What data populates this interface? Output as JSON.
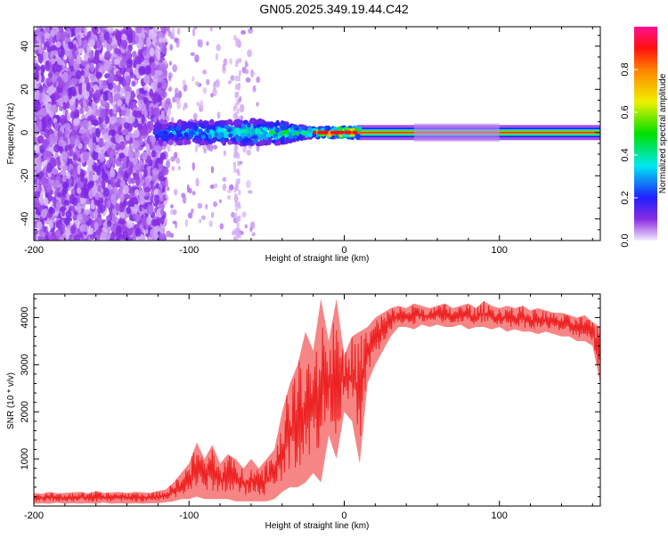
{
  "title": "GN05.2025.349.19.44.C42",
  "chart_data": [
    {
      "type": "heatmap",
      "title": "GN05.2025.349.19.44.C42",
      "xlabel": "Height of straight line (km)",
      "ylabel": "Frequency (Hz)",
      "xlim": [
        -200,
        165
      ],
      "ylim": [
        -50,
        49
      ],
      "xticks": [
        "-200",
        "-100",
        "0",
        "100"
      ],
      "xtick_values": [
        -200,
        -100,
        0,
        100
      ],
      "yticks": [
        "-40",
        "-20",
        "0",
        "20",
        "40"
      ],
      "ytick_values": [
        -40,
        -20,
        0,
        20,
        40
      ],
      "colorbar": {
        "label": "Normalized spectral amplitude",
        "range": [
          0,
          1
        ],
        "ticks": [
          "0.0",
          "0.2",
          "0.4",
          "0.6",
          "0.8"
        ],
        "tick_values": [
          0,
          0.2,
          0.4,
          0.6,
          0.8
        ],
        "colormap_stops": [
          {
            "v": 0.0,
            "c": "#f4eaff"
          },
          {
            "v": 0.1,
            "c": "#8a2be2"
          },
          {
            "v": 0.2,
            "c": "#2020ff"
          },
          {
            "v": 0.35,
            "c": "#00e8f0"
          },
          {
            "v": 0.5,
            "c": "#00e000"
          },
          {
            "v": 0.65,
            "c": "#f0f000"
          },
          {
            "v": 0.8,
            "c": "#ff8000"
          },
          {
            "v": 0.9,
            "c": "#ff1010"
          },
          {
            "v": 1.0,
            "c": "#ff1090"
          }
        ]
      },
      "noise_region_km": [
        -200,
        -115
      ],
      "signal_profile": {
        "x": [
          -120,
          -110,
          -100,
          -90,
          -80,
          -70,
          -60,
          -50,
          -40,
          -30,
          -20,
          -10,
          0,
          10,
          20,
          40,
          60,
          80,
          100,
          120,
          140,
          165
        ],
        "peak_amplitude": [
          0.25,
          0.3,
          0.35,
          0.38,
          0.4,
          0.42,
          0.45,
          0.45,
          0.48,
          0.5,
          0.55,
          0.85,
          0.9,
          0.95,
          0.95,
          0.95,
          0.95,
          0.95,
          0.95,
          0.95,
          0.95,
          0.95
        ],
        "spread_hz": [
          6,
          5,
          5,
          5,
          5,
          5,
          6,
          5,
          5,
          3,
          2,
          2,
          2,
          2,
          2,
          2,
          3,
          3,
          2.5,
          2,
          2,
          2
        ]
      }
    },
    {
      "type": "area",
      "xlabel": "Height of straight line (km)",
      "ylabel": "SNR (10 * v/v)",
      "xlim": [
        -200,
        165
      ],
      "ylim": [
        0,
        4500
      ],
      "xticks": [
        "-200",
        "-100",
        "0",
        "100"
      ],
      "xtick_values": [
        -200,
        -100,
        0,
        100
      ],
      "yticks": [
        "1000",
        "2000",
        "3000",
        "4000"
      ],
      "ytick_values": [
        1000,
        2000,
        3000,
        4000
      ],
      "color": "#ee2222",
      "x": [
        -200,
        -195,
        -190,
        -185,
        -180,
        -175,
        -170,
        -165,
        -160,
        -155,
        -150,
        -145,
        -140,
        -135,
        -130,
        -125,
        -120,
        -115,
        -110,
        -105,
        -100,
        -95,
        -90,
        -85,
        -80,
        -75,
        -70,
        -65,
        -60,
        -55,
        -50,
        -45,
        -40,
        -35,
        -30,
        -25,
        -20,
        -15,
        -10,
        -5,
        0,
        5,
        10,
        15,
        20,
        25,
        30,
        35,
        40,
        45,
        50,
        55,
        60,
        65,
        70,
        75,
        80,
        85,
        90,
        95,
        100,
        105,
        110,
        115,
        120,
        125,
        130,
        135,
        140,
        145,
        150,
        155,
        160,
        165
      ],
      "series": [
        {
          "name": "snr_low",
          "values": [
            50,
            60,
            50,
            70,
            50,
            60,
            50,
            60,
            50,
            70,
            50,
            60,
            50,
            60,
            50,
            60,
            60,
            80,
            100,
            150,
            150,
            200,
            150,
            150,
            150,
            150,
            100,
            100,
            100,
            100,
            100,
            150,
            300,
            400,
            400,
            500,
            700,
            500,
            1500,
            1000,
            2000,
            1800,
            900,
            2600,
            3000,
            3300,
            3600,
            3800,
            3800,
            3750,
            3850,
            3800,
            3850,
            3800,
            3800,
            3850,
            3750,
            3800,
            3800,
            3750,
            3800,
            3700,
            3750,
            3700,
            3700,
            3650,
            3700,
            3650,
            3600,
            3600,
            3500,
            3500,
            3400,
            2600
          ]
        },
        {
          "name": "snr_high",
          "values": [
            280,
            260,
            300,
            270,
            280,
            290,
            300,
            270,
            320,
            280,
            290,
            300,
            280,
            300,
            290,
            280,
            320,
            350,
            500,
            700,
            900,
            1350,
            1000,
            1300,
            900,
            1100,
            1000,
            800,
            1000,
            800,
            1000,
            1200,
            2000,
            2600,
            3000,
            3700,
            3300,
            4400,
            3500,
            4400,
            3200,
            3600,
            3700,
            3800,
            4000,
            4100,
            4200,
            4250,
            4200,
            4300,
            4250,
            4200,
            4250,
            4300,
            4200,
            4250,
            4300,
            4200,
            4350,
            4250,
            4200,
            4250,
            4200,
            4250,
            4150,
            4200,
            4150,
            4100,
            4100,
            4050,
            4000,
            4050,
            3900,
            3800
          ]
        }
      ]
    }
  ]
}
